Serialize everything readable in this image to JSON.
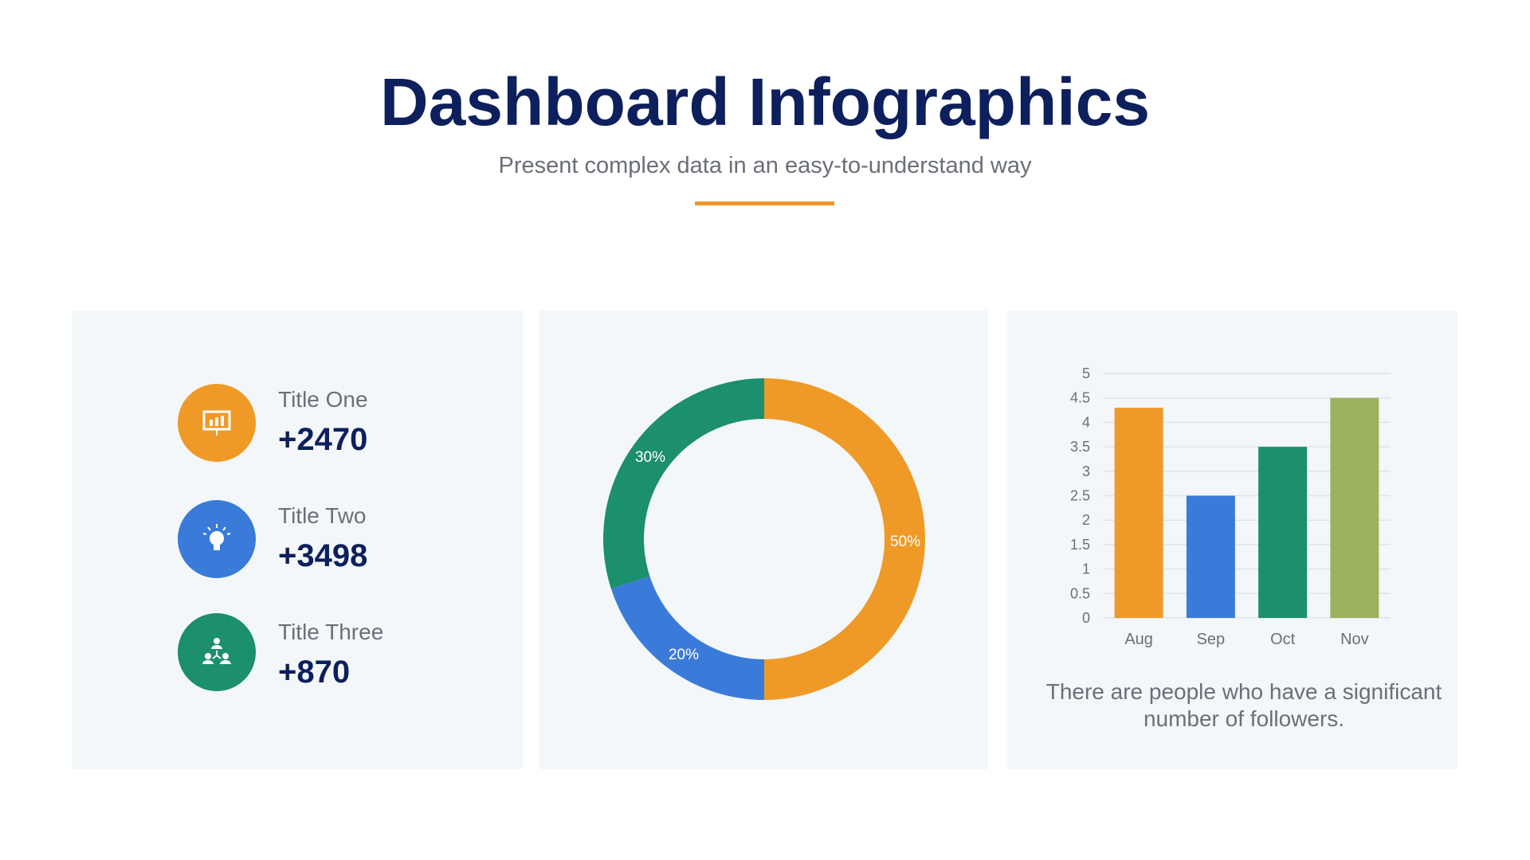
{
  "header": {
    "title": "Dashboard Infographics",
    "subtitle": "Present complex data in an easy-to-understand way",
    "accent": "#ef9a27"
  },
  "stats": [
    {
      "title": "Title One",
      "value": "+2470",
      "color": "#ef9a27",
      "icon": "presentation-chart-icon"
    },
    {
      "title": "Title Two",
      "value": "+3498",
      "color": "#3a7bd9",
      "icon": "lightbulb-icon"
    },
    {
      "title": "Title Three",
      "value": "+870",
      "color": "#1b8f6e",
      "icon": "team-hierarchy-icon"
    }
  ],
  "chart_data": [
    {
      "type": "pie",
      "variant": "donut",
      "slices": [
        {
          "label": "50%",
          "value": 50,
          "color": "#ef9a27"
        },
        {
          "label": "20%",
          "value": 20,
          "color": "#3a7bd9"
        },
        {
          "label": "30%",
          "value": 30,
          "color": "#1b8f6e"
        }
      ]
    },
    {
      "type": "bar",
      "categories": [
        "Aug",
        "Sep",
        "Oct",
        "Nov"
      ],
      "values": [
        4.3,
        2.5,
        3.5,
        4.5
      ],
      "colors": [
        "#ef9a27",
        "#3a7bd9",
        "#1b8f6e",
        "#9bb35f"
      ],
      "ylim": [
        0,
        5
      ],
      "yticks": [
        "0",
        "0.5",
        "1",
        "1.5",
        "2",
        "2.5",
        "3",
        "3.5",
        "4",
        "4.5",
        "5"
      ],
      "grid": true
    }
  ],
  "caption": "There are people who have a significant number of followers."
}
